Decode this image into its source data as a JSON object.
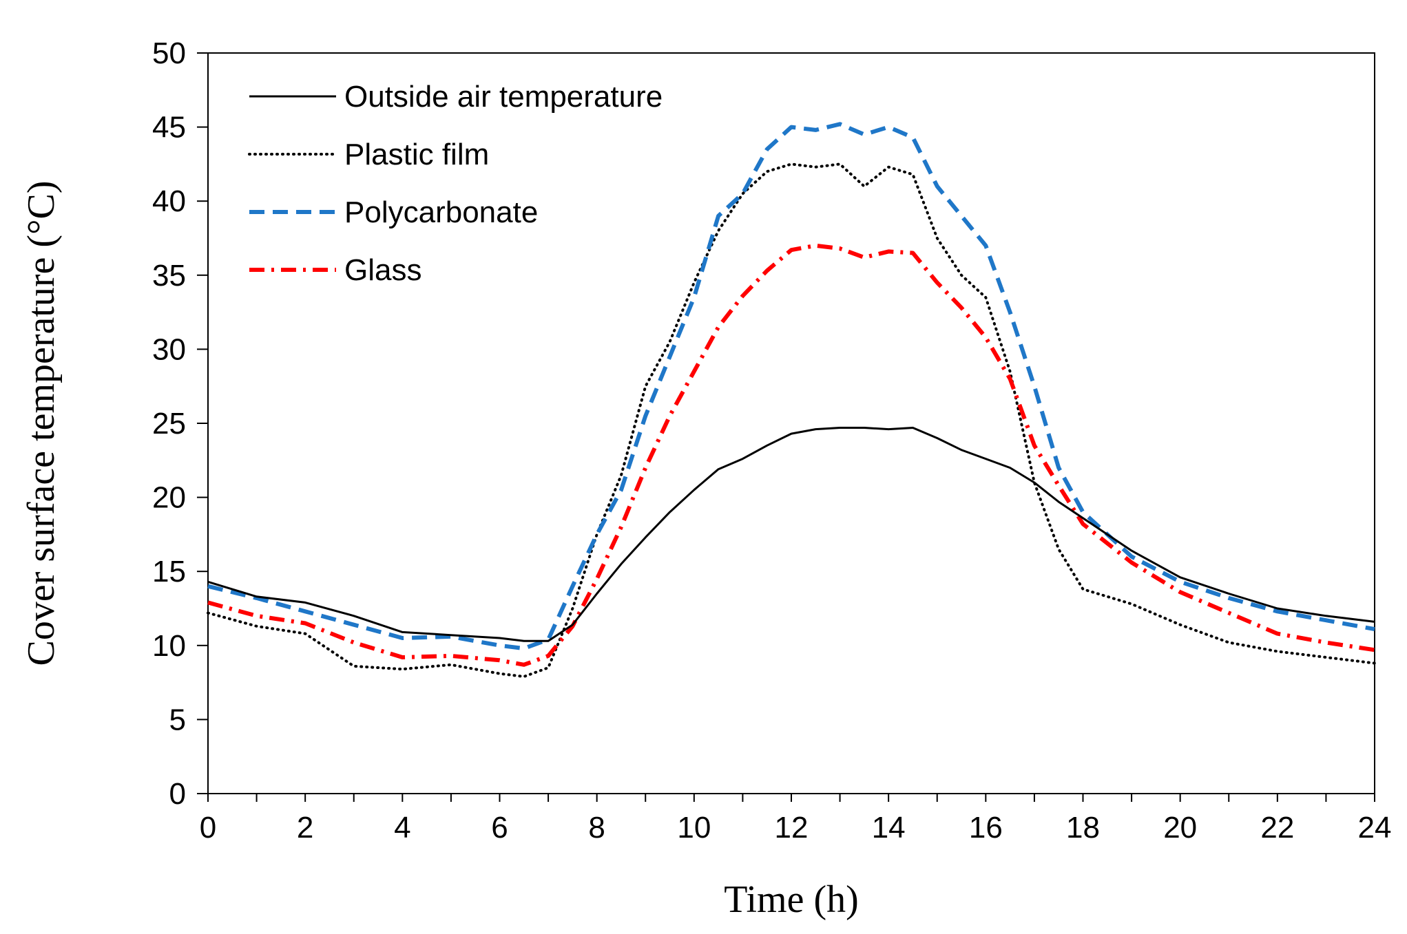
{
  "chart_data": {
    "type": "line",
    "title": "",
    "xlabel": "Time (h)",
    "ylabel": "Cover surface temperature (°C)",
    "xlim": [
      0,
      24
    ],
    "ylim": [
      0,
      50
    ],
    "x_ticks": [
      "0",
      "2",
      "4",
      "6",
      "8",
      "10",
      "12",
      "14",
      "16",
      "18",
      "20",
      "22",
      "24"
    ],
    "y_ticks": [
      "0",
      "5",
      "10",
      "15",
      "20",
      "25",
      "30",
      "35",
      "40",
      "45",
      "50"
    ],
    "grid": false,
    "legend_position": "top-left",
    "x": [
      0,
      1,
      2,
      3,
      4,
      5,
      6,
      6.5,
      7,
      7.5,
      8,
      8.5,
      9,
      9.5,
      10,
      10.5,
      11,
      11.5,
      12,
      12.5,
      13,
      13.5,
      14,
      14.5,
      15,
      15.5,
      16,
      16.5,
      17,
      17.5,
      18,
      19,
      20,
      21,
      22,
      23,
      24
    ],
    "series": [
      {
        "name": "Outside air temperature",
        "color": "#000000",
        "style": "solid",
        "values": [
          14.3,
          13.3,
          12.9,
          12.0,
          10.9,
          10.7,
          10.5,
          10.3,
          10.3,
          11.4,
          13.5,
          15.5,
          17.3,
          19.0,
          20.5,
          21.9,
          22.6,
          23.5,
          24.3,
          24.6,
          24.7,
          24.7,
          24.6,
          24.7,
          24.0,
          23.2,
          22.6,
          22.0,
          21.0,
          19.7,
          18.6,
          16.4,
          14.6,
          13.5,
          12.5,
          12.0,
          11.6
        ]
      },
      {
        "name": "Plastic film",
        "color": "#000000",
        "style": "dotted",
        "values": [
          12.2,
          11.3,
          10.8,
          8.6,
          8.4,
          8.7,
          8.1,
          7.9,
          8.5,
          12.5,
          17.5,
          21.5,
          27.5,
          30.5,
          34.5,
          38.0,
          40.5,
          42.0,
          42.5,
          42.3,
          42.5,
          41.0,
          42.3,
          41.8,
          37.5,
          35.0,
          33.5,
          28.5,
          21.0,
          16.5,
          13.8,
          12.8,
          11.4,
          10.2,
          9.6,
          9.2,
          8.8
        ]
      },
      {
        "name": "Polycarbonate",
        "color": "#1f77c8",
        "style": "dashed",
        "values": [
          14.0,
          13.2,
          12.3,
          11.4,
          10.5,
          10.6,
          10.0,
          9.8,
          10.4,
          14.0,
          17.5,
          20.5,
          25.5,
          29.5,
          33.5,
          39.0,
          40.5,
          43.5,
          45.0,
          44.8,
          45.2,
          44.5,
          45.0,
          44.3,
          41.0,
          39.0,
          37.0,
          32.5,
          27.5,
          22.0,
          19.0,
          16.0,
          14.3,
          13.2,
          12.3,
          11.7,
          11.1
        ]
      },
      {
        "name": "Glass",
        "color": "#ff0000",
        "style": "dashdot",
        "values": [
          12.9,
          12.0,
          11.5,
          10.2,
          9.2,
          9.3,
          9.0,
          8.7,
          9.3,
          11.3,
          14.5,
          18.0,
          22.0,
          25.5,
          28.5,
          31.5,
          33.6,
          35.3,
          36.7,
          37.0,
          36.8,
          36.2,
          36.6,
          36.5,
          34.5,
          32.8,
          30.8,
          28.0,
          23.5,
          20.8,
          18.2,
          15.6,
          13.6,
          12.2,
          10.8,
          10.2,
          9.7
        ]
      }
    ]
  }
}
